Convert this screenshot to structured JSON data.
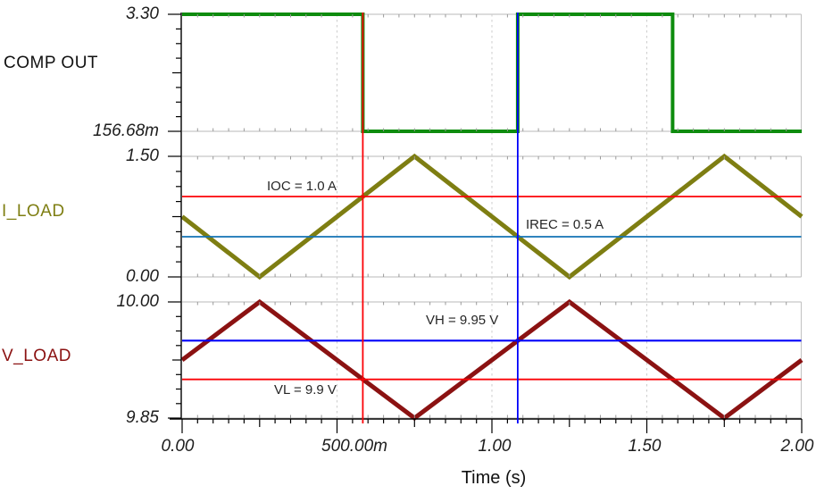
{
  "chart_data": {
    "type": "line",
    "title": "",
    "xlabel": "Time (s)",
    "xlim": [
      0,
      2
    ],
    "grid": {
      "vertical_dashed_at": [
        0.5,
        1.0,
        1.5
      ],
      "horizontal_at_panel_bounds": true
    },
    "x_ticks": [
      {
        "v": 0,
        "label": "0.00"
      },
      {
        "v": 0.5,
        "label": "500.00m"
      },
      {
        "v": 1.0,
        "label": "1.00"
      },
      {
        "v": 1.5,
        "label": "1.50"
      },
      {
        "v": 2.0,
        "label": "2.00"
      }
    ],
    "panels": [
      {
        "name": "COMP OUT",
        "label_color": "#111111",
        "ylim": [
          0.15668,
          3.3
        ],
        "y_top_label": "3.30",
        "y_bottom_label": "156.68m",
        "series": {
          "name": "COMP OUT",
          "color": "#0e8c0e",
          "width": 4,
          "points": [
            [
              0,
              3.3
            ],
            [
              0.58333,
              3.3
            ],
            [
              0.58333,
              0.15668
            ],
            [
              1.08333,
              0.15668
            ],
            [
              1.08333,
              3.3
            ],
            [
              1.58333,
              3.3
            ],
            [
              1.58333,
              0.15668
            ],
            [
              2,
              0.15668
            ]
          ]
        },
        "ref_lines": []
      },
      {
        "name": "I_LOAD",
        "label_color": "#7e7e12",
        "ylim": [
          0.0,
          1.5
        ],
        "y_top_label": "1.50",
        "y_bottom_label": "0.00",
        "series": {
          "name": "I_LOAD",
          "color": "#7e7e12",
          "width": 5,
          "points": [
            [
              0,
              0.75
            ],
            [
              0.25,
              0.0
            ],
            [
              0.75,
              1.5
            ],
            [
              1.25,
              0.0
            ],
            [
              1.75,
              1.5
            ],
            [
              2,
              0.75
            ]
          ]
        },
        "ref_lines": [
          {
            "value": 1.0,
            "color": "#fb0207",
            "width": 1.8,
            "label": "IOC = 1.0 A"
          },
          {
            "value": 0.5,
            "color": "#1273b5",
            "width": 1.8,
            "label": "IREC = 0.5 A"
          }
        ]
      },
      {
        "name": "V_LOAD",
        "label_color": "#8b1212",
        "ylim": [
          9.85,
          10.0
        ],
        "y_top_label": "10.00",
        "y_bottom_label": "9.85",
        "series": {
          "name": "V_LOAD",
          "color": "#8b1212",
          "width": 5,
          "points": [
            [
              0,
              9.925
            ],
            [
              0.25,
              10.0
            ],
            [
              0.75,
              9.85
            ],
            [
              1.25,
              10.0
            ],
            [
              1.75,
              9.85
            ],
            [
              2,
              9.925
            ]
          ]
        },
        "ref_lines": [
          {
            "value": 9.95,
            "color": "#0202fa",
            "width": 2.2,
            "label": "VH = 9.95 V"
          },
          {
            "value": 9.9,
            "color": "#fb0207",
            "width": 1.8,
            "label": "VL = 9.9 V"
          }
        ]
      }
    ],
    "cursors": [
      {
        "t": 0.58333,
        "color": "#fb0207",
        "name": "cursor-a-red"
      },
      {
        "t": 1.08333,
        "color": "#0202fa",
        "name": "cursor-b-blue"
      }
    ]
  }
}
